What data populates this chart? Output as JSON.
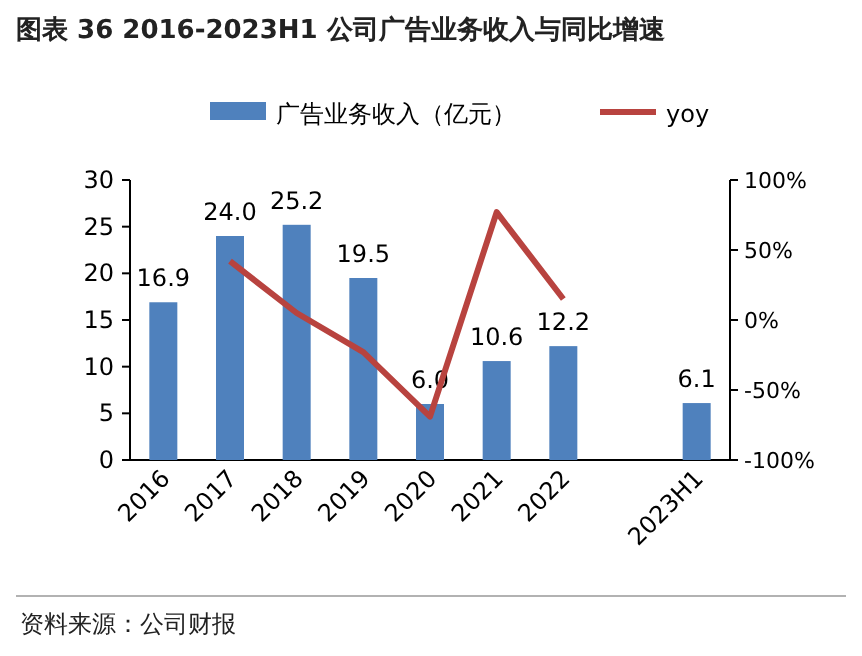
{
  "chart_data": {
    "type": "bar",
    "title": "图表 36 2016-2023H1 公司广告业务收入与同比增速",
    "categories": [
      "2016",
      "2017",
      "2018",
      "2019",
      "2020",
      "2021",
      "2022",
      null,
      "2023H1"
    ],
    "series": [
      {
        "name": "广告业务收入（亿元）",
        "color": "#4f81bd",
        "values": [
          16.9,
          24.0,
          25.2,
          19.5,
          6.0,
          10.6,
          12.2,
          null,
          6.1
        ],
        "value_labels": [
          "16.9",
          "24.0",
          "25.2",
          "19.5",
          "6.0",
          "10.6",
          "12.2",
          null,
          "6.1"
        ]
      },
      {
        "name": "yoy",
        "type": "line",
        "axis": "y2",
        "color": "#b8433f",
        "values": [
          null,
          42,
          5,
          -23,
          -69,
          77,
          15,
          null,
          null
        ]
      }
    ],
    "ylim": [
      0,
      30
    ],
    "yticks": [
      0,
      5,
      10,
      15,
      20,
      25,
      30
    ],
    "y2lim": [
      -100,
      100
    ],
    "y2ticks": [
      {
        "value": 100,
        "label": "100%"
      },
      {
        "value": 50,
        "label": "50%"
      },
      {
        "value": 0,
        "label": "0%"
      },
      {
        "value": -50,
        "label": "-50%"
      },
      {
        "value": -100,
        "label": "-100%"
      }
    ],
    "legend": "top",
    "grid": false,
    "marker": "none",
    "annotations": [
      "资料来源：公司财报"
    ]
  }
}
